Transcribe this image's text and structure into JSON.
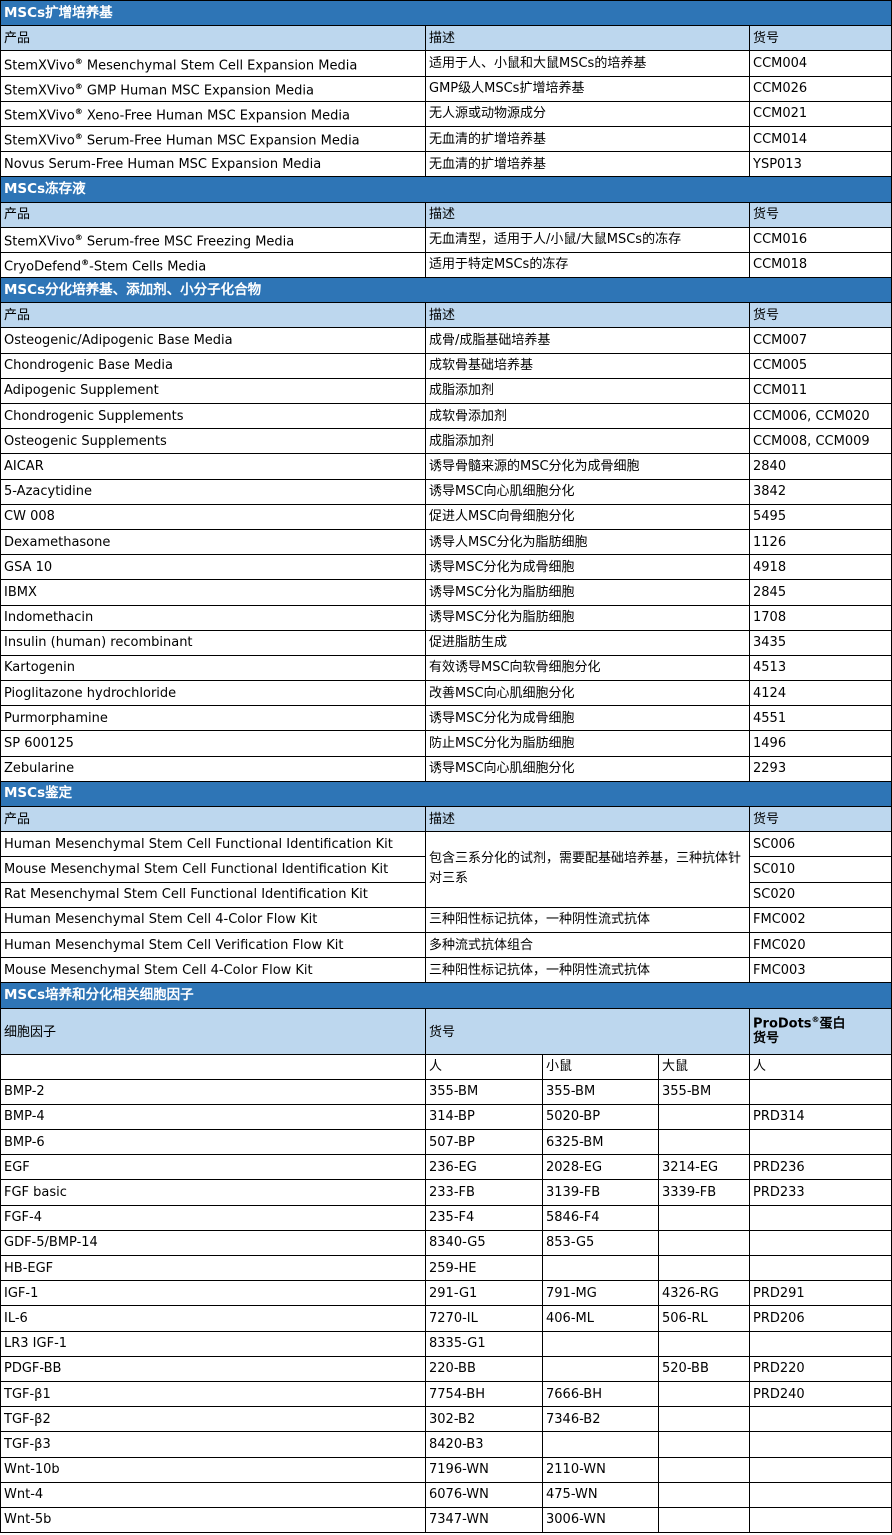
{
  "colors": {
    "section_header": "#2e75b6",
    "column_header": "#bdd7ee",
    "border": "#000000"
  },
  "sections": [
    {
      "title": "MSCs扩增培养基",
      "headers": [
        "产品",
        "描述",
        "货号"
      ],
      "rows": [
        [
          "StemXVivo® Mesenchymal Stem Cell Expansion Media",
          "适用于人、小鼠和大鼠MSCs的培养基",
          "CCM004"
        ],
        [
          "StemXVivo® GMP Human MSC Expansion Media",
          "GMP级人MSCs扩增培养基",
          "CCM026"
        ],
        [
          "StemXVivo® Xeno-Free Human MSC Expansion Media",
          "无人源或动物源成分",
          "CCM021"
        ],
        [
          "StemXVivo® Serum-Free Human MSC Expansion Media",
          "无血清的扩增培养基",
          "CCM014"
        ],
        [
          "Novus Serum-Free Human MSC Expansion Media",
          "无血清的扩增培养基",
          "YSP013"
        ]
      ]
    },
    {
      "title": "MSCs冻存液",
      "headers": [
        "产品",
        "描述",
        "货号"
      ],
      "rows": [
        [
          "StemXVivo® Serum-free MSC Freezing Media",
          "无血清型，适用于人/小鼠/大鼠MSCs的冻存",
          "CCM016"
        ],
        [
          "CryoDefend®-Stem Cells Media",
          "适用于特定MSCs的冻存",
          "CCM018"
        ]
      ]
    },
    {
      "title": "MSCs分化培养基、添加剂、小分子化合物",
      "headers": [
        "产品",
        "描述",
        "货号"
      ],
      "rows": [
        [
          "Osteogenic/Adipogenic Base Media",
          "成骨/成脂基础培养基",
          "CCM007"
        ],
        [
          "Chondrogenic Base Media",
          "成软骨基础培养基",
          "CCM005"
        ],
        [
          "Adipogenic Supplement",
          "成脂添加剂",
          "CCM011"
        ],
        [
          "Chondrogenic Supplements",
          "成软骨添加剂",
          "CCM006, CCM020"
        ],
        [
          "Osteogenic Supplements",
          "成脂添加剂",
          "CCM008, CCM009"
        ],
        [
          "AICAR",
          "诱导骨髓来源的MSC分化为成骨细胞",
          "2840"
        ],
        [
          "5-Azacytidine",
          "诱导MSC向心肌细胞分化",
          "3842"
        ],
        [
          "CW 008",
          "促进人MSC向骨细胞分化",
          "5495"
        ],
        [
          "Dexamethasone",
          "诱导人MSC分化为脂肪细胞",
          "1126"
        ],
        [
          "GSA 10",
          "诱导MSC分化为成骨细胞",
          "4918"
        ],
        [
          "IBMX",
          "诱导MSC分化为脂肪细胞",
          "2845"
        ],
        [
          "Indomethacin",
          "诱导MSC分化为脂肪细胞",
          "1708"
        ],
        [
          "Insulin (human) recombinant",
          "促进脂肪生成",
          "3435"
        ],
        [
          "Kartogenin",
          "有效诱导MSC向软骨细胞分化",
          "4513"
        ],
        [
          "Pioglitazone hydrochloride",
          "改善MSC向心肌细胞分化",
          "4124"
        ],
        [
          "Purmorphamine",
          "诱导MSC分化为成骨细胞",
          "4551"
        ],
        [
          "SP 600125",
          "防止MSC分化为脂肪细胞",
          "1496"
        ],
        [
          "Zebularine",
          "诱导MSC向心肌细胞分化",
          "2293"
        ]
      ]
    },
    {
      "title": "MSCs鉴定",
      "headers": [
        "产品",
        "描述",
        "货号"
      ],
      "merged_description": "包含三系分化的试剂，需要配基础培养基，三种抗体针对三系",
      "rows": [
        [
          "Human Mesenchymal Stem Cell Functional Identification Kit",
          null,
          "SC006"
        ],
        [
          "Mouse Mesenchymal Stem Cell Functional Identification Kit",
          null,
          "SC010"
        ],
        [
          "Rat Mesenchymal Stem Cell Functional Identification Kit",
          null,
          "SC020"
        ],
        [
          "Human Mesenchymal Stem Cell 4-Color Flow Kit",
          "三种阳性标记抗体，一种阴性流式抗体",
          "FMC002"
        ],
        [
          "Human Mesenchymal Stem Cell Verification Flow Kit",
          "多种流式抗体组合",
          "FMC020"
        ],
        [
          "Mouse Mesenchymal Stem Cell 4-Color Flow Kit",
          "三种阳性标记抗体，一种阴性流式抗体",
          "FMC003"
        ]
      ]
    }
  ],
  "cytokines": {
    "title": "MSCs培养和分化相关细胞因子",
    "header_factor": "细胞因子",
    "header_catalog": "货号",
    "header_prodots": "ProDots®蛋白货号",
    "species": [
      "人",
      "小鼠",
      "大鼠",
      "人"
    ],
    "rows": [
      [
        "BMP-2",
        "355-BM",
        "355-BM",
        "355-BM",
        ""
      ],
      [
        "BMP-4",
        "314-BP",
        "5020-BP",
        "",
        "PRD314"
      ],
      [
        "BMP-6",
        "507-BP",
        "6325-BM",
        "",
        ""
      ],
      [
        "EGF",
        "236-EG",
        "2028-EG",
        "3214-EG",
        "PRD236"
      ],
      [
        "FGF basic",
        "233-FB",
        "3139-FB",
        "3339-FB",
        "PRD233"
      ],
      [
        "FGF-4",
        "235-F4",
        "5846-F4",
        "",
        ""
      ],
      [
        "GDF-5/BMP-14",
        "8340-G5",
        "853-G5",
        "",
        ""
      ],
      [
        "HB-EGF",
        "259-HE",
        "",
        "",
        ""
      ],
      [
        "IGF-1",
        "291-G1",
        "791-MG",
        "4326-RG",
        "PRD291"
      ],
      [
        "IL-6",
        "7270-IL",
        "406-ML",
        "506-RL",
        "PRD206"
      ],
      [
        "LR3 IGF-1",
        "8335-G1",
        "",
        "",
        ""
      ],
      [
        "PDGF-BB",
        "220-BB",
        "",
        "520-BB",
        "PRD220"
      ],
      [
        "TGF-β1",
        "7754-BH",
        "7666-BH",
        "",
        "PRD240"
      ],
      [
        "TGF-β2",
        "302-B2",
        "7346-B2",
        "",
        ""
      ],
      [
        "TGF-β3",
        "8420-B3",
        "",
        "",
        ""
      ],
      [
        "Wnt-10b",
        "7196-WN",
        "2110-WN",
        "",
        ""
      ],
      [
        "Wnt-4",
        "6076-WN",
        "475-WN",
        "",
        ""
      ],
      [
        "Wnt-5b",
        "7347-WN",
        "3006-WN",
        "",
        ""
      ]
    ]
  }
}
